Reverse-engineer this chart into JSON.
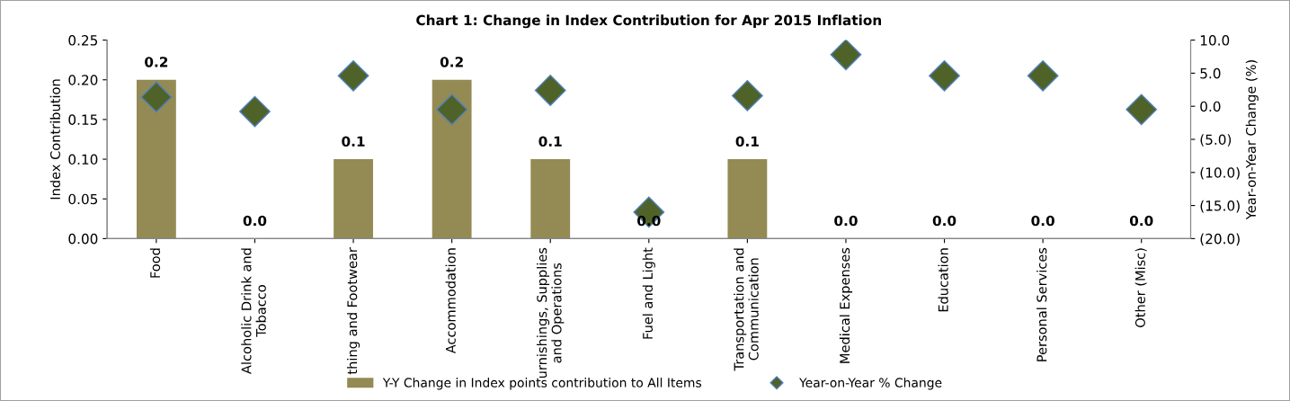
{
  "chart_data": {
    "type": "bar",
    "title": "Chart 1: Change in Index Contribution for Apr 2015 Inflation",
    "ylabel": "Index Contribution",
    "y2label": "Year-on-Year Change (%)",
    "categories": [
      "Food",
      "Alcoholic Drink and\nTobacco",
      "thing and Footwear",
      "Accommodation",
      "urnishings, Supplies\nand Operations",
      "Fuel and Light",
      "Transportation and\nCommunication",
      "Medical Expenses",
      "Education",
      "Personal Services",
      "Other (Misc)"
    ],
    "series": [
      {
        "name": "Y-Y Change in Index points contribution to All Items",
        "color": "#948a54",
        "values": [
          0.2,
          0,
          0.1,
          0.2,
          0.1,
          0,
          0.1,
          0,
          0,
          0,
          0
        ],
        "value_labels": [
          "0.2",
          "0.0",
          "0.1",
          "0.2",
          "0.1",
          "0.0",
          "0.1",
          "0.0",
          "0.0",
          "0.0",
          "0.0"
        ]
      },
      {
        "name": "Year-on-Year % Change",
        "type": "scatter",
        "axis": "y2",
        "marker": "diamond",
        "color": "#4f6228",
        "values": [
          1.4,
          -0.8,
          4.6,
          -0.5,
          2.4,
          -16.0,
          1.6,
          7.8,
          4.6,
          4.6,
          -0.5
        ]
      }
    ],
    "ylim": [
      0,
      0.25
    ],
    "yticks": [
      {
        "value": 0,
        "label": "0.00"
      },
      {
        "value": 0.05,
        "label": "0.05"
      },
      {
        "value": 0.1,
        "label": "0.10"
      },
      {
        "value": 0.15,
        "label": "0.15"
      },
      {
        "value": 0.2,
        "label": "0.20"
      },
      {
        "value": 0.25,
        "label": "0.25"
      }
    ],
    "y2lim": [
      -20,
      10
    ],
    "y2ticks": [
      {
        "value": -20,
        "label": "(20.0)"
      },
      {
        "value": -15,
        "label": "(15.0)"
      },
      {
        "value": -10,
        "label": "(10.0)"
      },
      {
        "value": -5,
        "label": "(5.0)"
      },
      {
        "value": 0,
        "label": "0.0"
      },
      {
        "value": 5,
        "label": "5.0"
      },
      {
        "value": 10,
        "label": "10.0"
      }
    ],
    "grid": false,
    "legend": "bottom"
  }
}
